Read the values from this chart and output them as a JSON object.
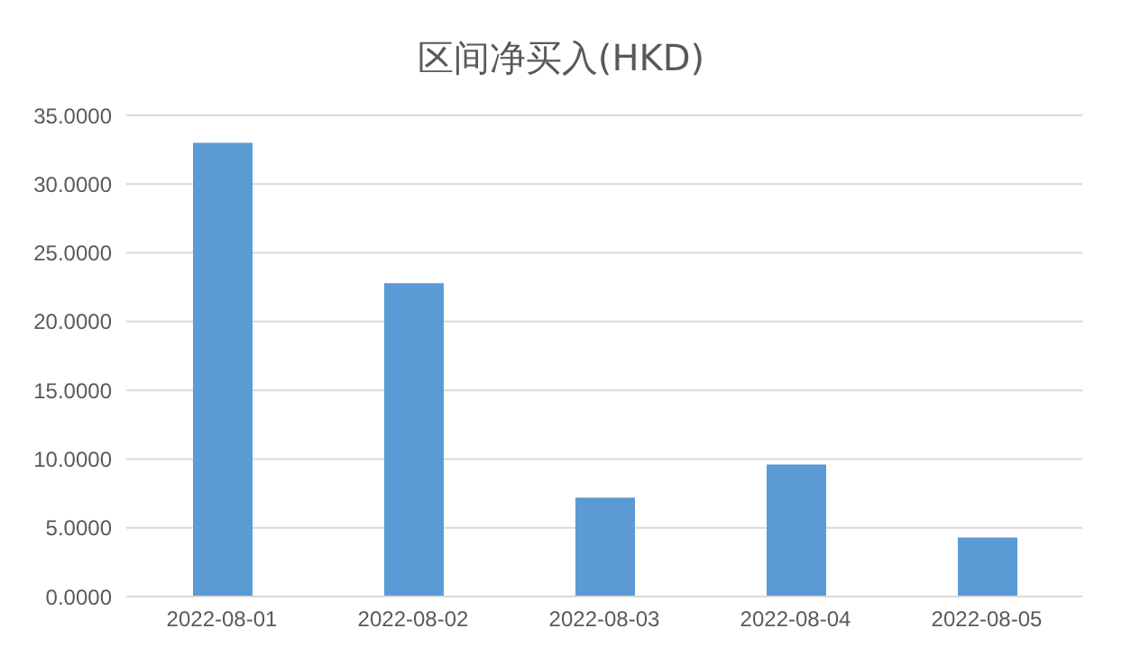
{
  "chart_data": {
    "type": "bar",
    "title": "区间净买入(HKD)",
    "categories": [
      "2022-08-01",
      "2022-08-02",
      "2022-08-03",
      "2022-08-04",
      "2022-08-05"
    ],
    "values": [
      33.0,
      22.8,
      7.2,
      9.6,
      4.3
    ],
    "color": "#5b9bd5",
    "ylim": [
      0,
      35
    ],
    "yticks": [
      {
        "value": 0,
        "label": "0.0000"
      },
      {
        "value": 5,
        "label": "5.0000"
      },
      {
        "value": 10,
        "label": "10.0000"
      },
      {
        "value": 15,
        "label": "15.0000"
      },
      {
        "value": 20,
        "label": "20.0000"
      },
      {
        "value": 25,
        "label": "25.0000"
      },
      {
        "value": 30,
        "label": "30.0000"
      },
      {
        "value": 35,
        "label": "35.0000"
      }
    ],
    "grid": "y"
  }
}
